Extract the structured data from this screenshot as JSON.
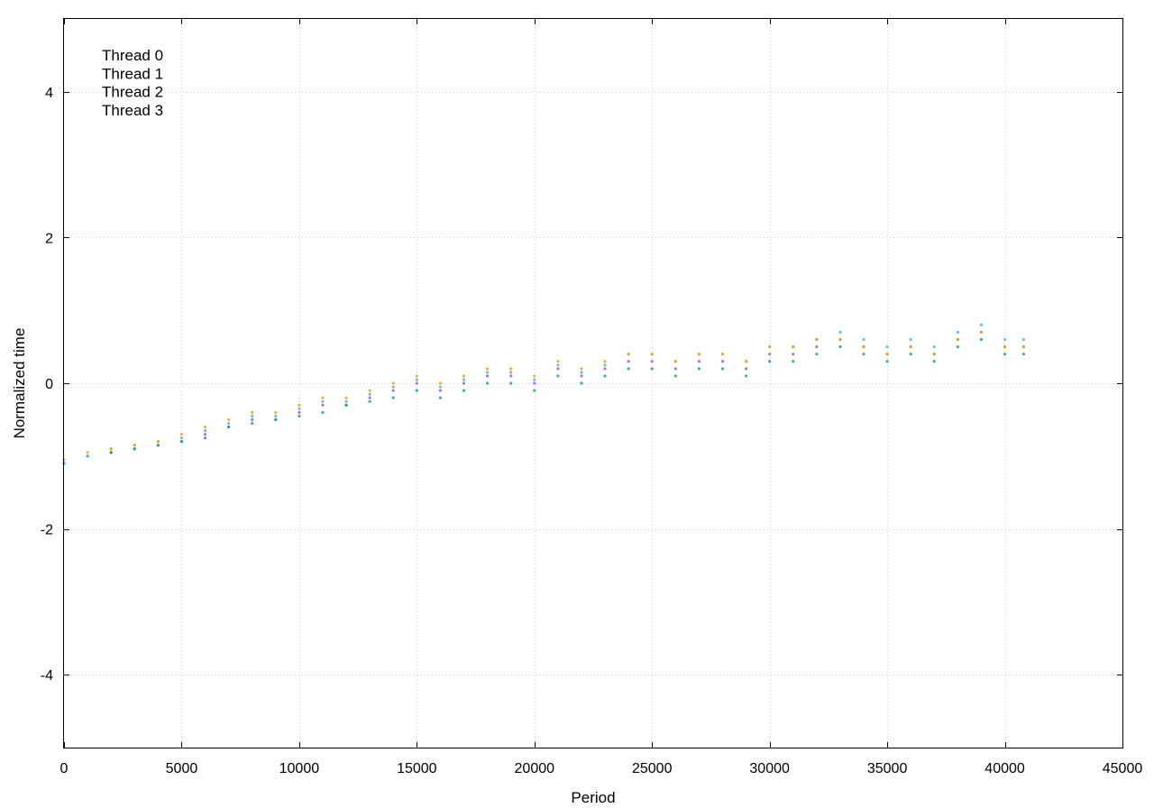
{
  "chart_data": {
    "type": "scatter",
    "title": "",
    "xlabel": "Period",
    "ylabel": "Normalized time",
    "xlim": [
      0,
      45000
    ],
    "ylim": [
      -5,
      5
    ],
    "xticks": [
      0,
      5000,
      10000,
      15000,
      20000,
      25000,
      30000,
      35000,
      40000,
      45000
    ],
    "yticks": [
      -4,
      -2,
      0,
      2,
      4
    ],
    "grid": true,
    "legend_position": "top-left",
    "series": [
      {
        "name": "Thread 0",
        "color": "#9467bd",
        "x": [
          0,
          1000,
          2000,
          3000,
          4000,
          5000,
          6000,
          7000,
          8000,
          9000,
          10000,
          11000,
          12000,
          13000,
          14000,
          15000,
          16000,
          17000,
          18000,
          19000,
          20000,
          21000,
          22000,
          23000,
          24000,
          25000,
          26000,
          27000,
          28000,
          29000,
          30000,
          31000,
          32000,
          33000,
          34000,
          35000,
          36000,
          37000,
          38000,
          39000,
          40000,
          40800
        ],
        "y": [
          -1.1,
          -1.0,
          -0.95,
          -0.9,
          -0.85,
          -0.8,
          -0.7,
          -0.6,
          -0.5,
          -0.5,
          -0.4,
          -0.3,
          -0.3,
          -0.2,
          -0.1,
          0.0,
          -0.1,
          0.0,
          0.1,
          0.1,
          0.0,
          0.2,
          0.1,
          0.2,
          0.3,
          0.3,
          0.2,
          0.3,
          0.3,
          0.2,
          0.4,
          0.4,
          0.5,
          0.6,
          0.5,
          0.4,
          0.5,
          0.4,
          0.6,
          0.7,
          0.5,
          0.5
        ]
      },
      {
        "name": "Thread 1",
        "color": "#2a9d7f",
        "x": [
          0,
          1000,
          2000,
          3000,
          4000,
          5000,
          6000,
          7000,
          8000,
          9000,
          10000,
          11000,
          12000,
          13000,
          14000,
          15000,
          16000,
          17000,
          18000,
          19000,
          20000,
          21000,
          22000,
          23000,
          24000,
          25000,
          26000,
          27000,
          28000,
          29000,
          30000,
          31000,
          32000,
          33000,
          34000,
          35000,
          36000,
          37000,
          38000,
          39000,
          40000,
          40800
        ],
        "y": [
          -1.1,
          -1.0,
          -0.95,
          -0.9,
          -0.85,
          -0.8,
          -0.75,
          -0.6,
          -0.55,
          -0.5,
          -0.45,
          -0.4,
          -0.3,
          -0.25,
          -0.2,
          -0.1,
          -0.2,
          -0.1,
          0.0,
          0.0,
          -0.1,
          0.1,
          0.0,
          0.1,
          0.2,
          0.2,
          0.1,
          0.2,
          0.2,
          0.1,
          0.3,
          0.3,
          0.4,
          0.5,
          0.4,
          0.3,
          0.4,
          0.3,
          0.5,
          0.6,
          0.4,
          0.4
        ]
      },
      {
        "name": "Thread 2",
        "color": "#56b4e9",
        "x": [
          0,
          1000,
          2000,
          3000,
          4000,
          5000,
          6000,
          7000,
          8000,
          9000,
          10000,
          11000,
          12000,
          13000,
          14000,
          15000,
          16000,
          17000,
          18000,
          19000,
          20000,
          21000,
          22000,
          23000,
          24000,
          25000,
          26000,
          27000,
          28000,
          29000,
          30000,
          31000,
          32000,
          33000,
          34000,
          35000,
          36000,
          37000,
          38000,
          39000,
          40000,
          40800
        ],
        "y": [
          -1.1,
          -1.0,
          -0.9,
          -0.85,
          -0.8,
          -0.75,
          -0.65,
          -0.55,
          -0.45,
          -0.45,
          -0.35,
          -0.25,
          -0.25,
          -0.15,
          -0.05,
          0.05,
          -0.05,
          0.05,
          0.15,
          0.15,
          0.05,
          0.25,
          0.15,
          0.25,
          0.4,
          0.4,
          0.3,
          0.4,
          0.4,
          0.3,
          0.5,
          0.5,
          0.6,
          0.7,
          0.6,
          0.5,
          0.6,
          0.5,
          0.7,
          0.8,
          0.6,
          0.6
        ]
      },
      {
        "name": "Thread 3",
        "color": "#e0a820",
        "x": [
          0,
          1000,
          2000,
          3000,
          4000,
          5000,
          6000,
          7000,
          8000,
          9000,
          10000,
          11000,
          12000,
          13000,
          14000,
          15000,
          16000,
          17000,
          18000,
          19000,
          20000,
          21000,
          22000,
          23000,
          24000,
          25000,
          26000,
          27000,
          28000,
          29000,
          30000,
          31000,
          32000,
          33000,
          34000,
          35000,
          36000,
          37000,
          38000,
          39000,
          40000,
          40800
        ],
        "y": [
          -1.05,
          -0.95,
          -0.9,
          -0.85,
          -0.8,
          -0.7,
          -0.6,
          -0.5,
          -0.4,
          -0.4,
          -0.3,
          -0.2,
          -0.2,
          -0.1,
          0.0,
          0.1,
          0.0,
          0.1,
          0.2,
          0.2,
          0.1,
          0.3,
          0.2,
          0.3,
          0.4,
          0.4,
          0.3,
          0.4,
          0.4,
          0.3,
          0.5,
          0.5,
          0.6,
          0.6,
          0.5,
          0.4,
          0.5,
          0.4,
          0.6,
          0.7,
          0.5,
          0.5
        ]
      }
    ]
  }
}
